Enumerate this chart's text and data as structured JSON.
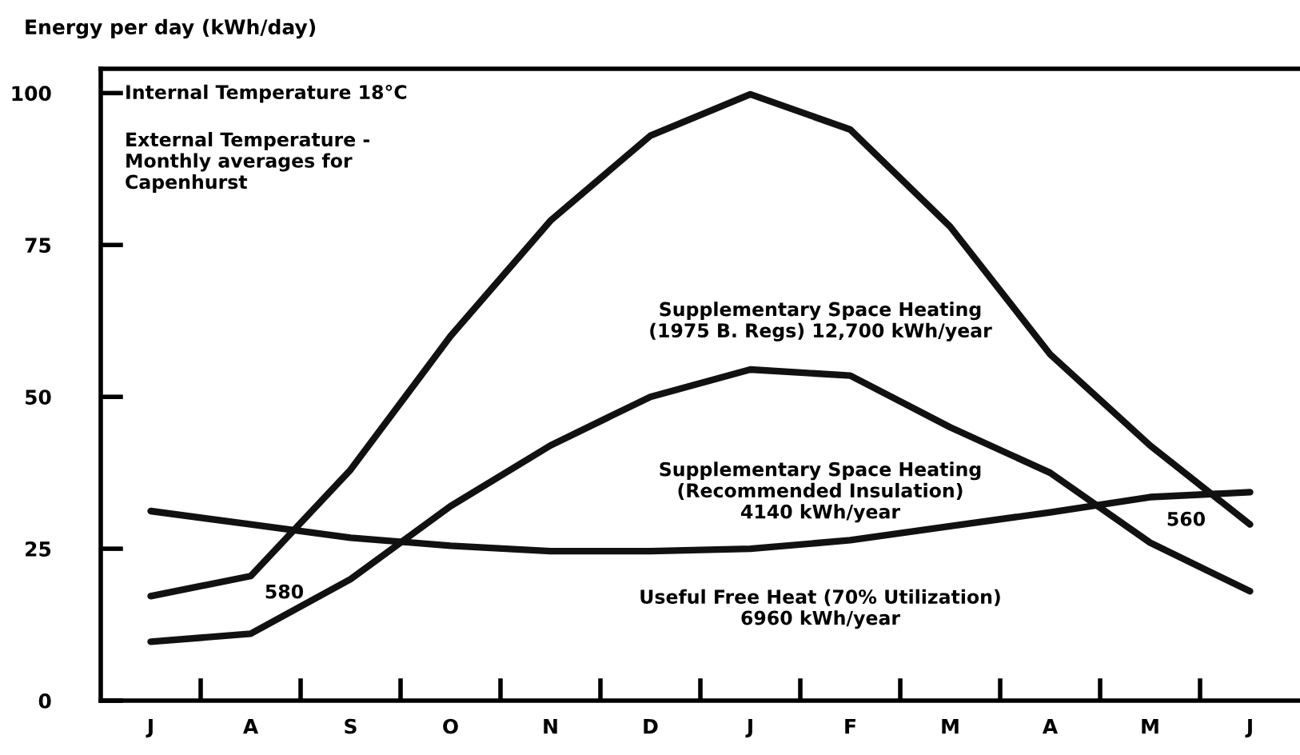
{
  "chart_data": {
    "type": "line",
    "ylabel": "Energy per day (kWh/day)",
    "categories": [
      "J",
      "A",
      "S",
      "O",
      "N",
      "D",
      "J",
      "F",
      "M",
      "A",
      "M",
      "J"
    ],
    "ylim": [
      0,
      104
    ],
    "yticks": [
      0,
      25,
      50,
      75,
      100
    ],
    "grid": false,
    "legend": false,
    "marker": "none",
    "line_style": "solid",
    "series": [
      {
        "color": "#111111",
        "values": [
          17.2,
          20.5,
          38,
          60,
          79,
          93,
          99.8,
          94,
          78,
          57,
          42,
          29
        ]
      },
      {
        "color": "#111111",
        "values": [
          9.7,
          11,
          20,
          32,
          42,
          50,
          54.5,
          53.5,
          45,
          37.5,
          26,
          18
        ]
      },
      {
        "color": "#111111",
        "values": [
          31.2,
          29,
          26.8,
          25.5,
          24.6,
          24.6,
          25,
          26.4,
          28.7,
          31,
          33.5,
          34.3
        ]
      }
    ],
    "annotations": [
      "Internal Temperature 18°C",
      "External Temperature -\nMonthly averages for\nCapenhurst",
      "Supplementary Space Heating\n(1975 B. Regs) 12,700 kWh/year",
      "Supplementary Space Heating\n(Recommended Insulation)\n4140 kWh/year",
      "Useful Free Heat (70% Utilization)\n6960 kWh/year",
      "580",
      "560"
    ]
  }
}
